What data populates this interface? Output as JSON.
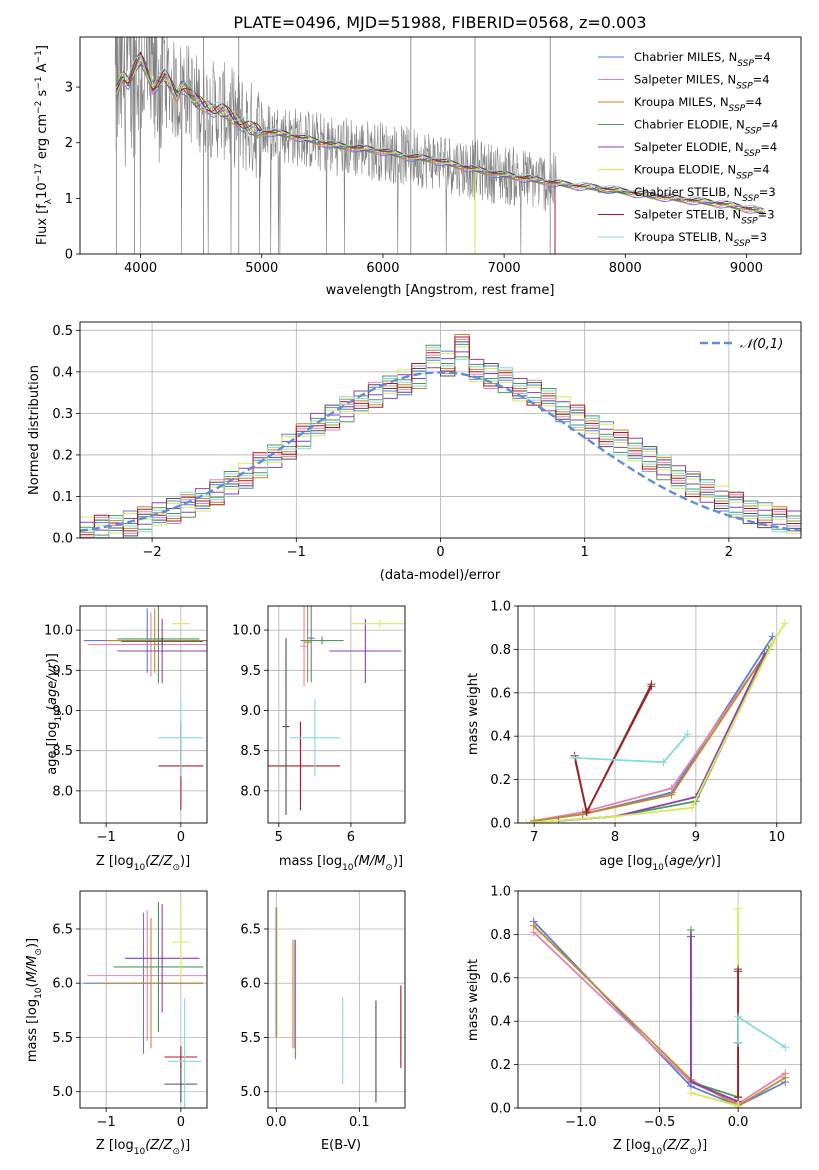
{
  "colors": {
    "chabrier_miles": "#5a7fd4",
    "salpeter_miles": "#e583b4",
    "kroupa_miles": "#c28a2e",
    "chabrier_elodie": "#4f9a55",
    "salpeter_elodie": "#8c3fb5",
    "kroupa_elodie": "#d8e85a",
    "chabrier_stelib": "#505050",
    "salpeter_stelib": "#a51d21",
    "kroupa_stelib": "#88d8e0",
    "data": "#808080",
    "gaussian": "#5b8fd9"
  },
  "chart_data": [
    {
      "type": "line",
      "title": "PLATE=0496, MJD=51988, FIBERID=0568, z=0.003",
      "xlabel": "wavelength [Angstrom, rest frame]",
      "ylabel_parts": [
        "Flux [f",
        "λ",
        "10",
        "−17",
        " erg cm",
        "−2",
        " s",
        "−1",
        " A",
        "−1",
        "]"
      ],
      "xlim": [
        3500,
        9450
      ],
      "ylim": [
        0,
        3.9
      ],
      "xticks": [
        4000,
        5000,
        6000,
        7000,
        8000,
        9000
      ],
      "yticks": [
        0,
        1,
        2,
        3
      ],
      "grid": false,
      "legend_position": "top-right",
      "series": [
        {
          "key": "chabrier_miles",
          "name_main": "Chabrier MILES, N",
          "name_sub": "SSP",
          "name_tail": "=4"
        },
        {
          "key": "salpeter_miles",
          "name_main": "Salpeter MILES, N",
          "name_sub": "SSP",
          "name_tail": "=4"
        },
        {
          "key": "kroupa_miles",
          "name_main": "Kroupa MILES, N",
          "name_sub": "SSP",
          "name_tail": "=4"
        },
        {
          "key": "chabrier_elodie",
          "name_main": "Chabrier ELODIE, N",
          "name_sub": "SSP",
          "name_tail": "=4"
        },
        {
          "key": "salpeter_elodie",
          "name_main": "Salpeter ELODIE, N",
          "name_sub": "SSP",
          "name_tail": "=4"
        },
        {
          "key": "kroupa_elodie",
          "name_main": "Kroupa ELODIE, N",
          "name_sub": "SSP",
          "name_tail": "=4"
        },
        {
          "key": "chabrier_stelib",
          "name_main": "Chabrier STELIB, N",
          "name_sub": "SSP",
          "name_tail": "=3"
        },
        {
          "key": "salpeter_stelib",
          "name_main": "Salpeter STELIB, N",
          "name_sub": "SSP",
          "name_tail": "=3"
        },
        {
          "key": "kroupa_stelib",
          "name_main": "Kroupa STELIB, N",
          "name_sub": "SSP",
          "name_tail": "=3"
        }
      ],
      "model_continuum": [
        [
          3800,
          2.9
        ],
        [
          3850,
          3.2
        ],
        [
          3900,
          3.1
        ],
        [
          3950,
          3.35
        ],
        [
          4000,
          3.5
        ],
        [
          4050,
          3.3
        ],
        [
          4100,
          3.0
        ],
        [
          4150,
          3.1
        ],
        [
          4200,
          3.2
        ],
        [
          4300,
          2.85
        ],
        [
          4350,
          3.05
        ],
        [
          4450,
          2.75
        ],
        [
          4500,
          2.7
        ],
        [
          4600,
          2.6
        ],
        [
          4700,
          2.55
        ],
        [
          4800,
          2.4
        ],
        [
          4900,
          2.25
        ],
        [
          5000,
          2.2
        ],
        [
          5200,
          2.15
        ],
        [
          5400,
          2.05
        ],
        [
          5600,
          1.95
        ],
        [
          5800,
          1.9
        ],
        [
          6000,
          1.85
        ],
        [
          6200,
          1.75
        ],
        [
          6400,
          1.7
        ],
        [
          6600,
          1.6
        ],
        [
          6800,
          1.5
        ],
        [
          7000,
          1.42
        ],
        [
          7200,
          1.35
        ],
        [
          7400,
          1.28
        ],
        [
          7600,
          1.22
        ],
        [
          7800,
          1.18
        ],
        [
          8000,
          1.12
        ],
        [
          8200,
          1.05
        ],
        [
          8400,
          1.0
        ],
        [
          8600,
          0.95
        ],
        [
          8800,
          0.9
        ],
        [
          9000,
          0.82
        ],
        [
          9150,
          0.75
        ]
      ],
      "data_extent": [
        3790,
        9150
      ],
      "noisy_until": 7430
    },
    {
      "type": "step",
      "xlabel": "(data-model)/error",
      "ylabel": "Normed distribution",
      "xlim": [
        -2.5,
        2.5
      ],
      "ylim": [
        0,
        0.52
      ],
      "xticks": [
        -2,
        -1,
        0,
        1,
        2
      ],
      "xtick_labels": [
        "−2",
        "−1",
        "0",
        "1",
        "2"
      ],
      "yticks": [
        0.0,
        0.1,
        0.2,
        0.3,
        0.4,
        0.5
      ],
      "ytick_labels": [
        "0.0",
        "0.1",
        "0.2",
        "0.3",
        "0.4",
        "0.5"
      ],
      "grid": true,
      "legend": "𝒩(0,1)",
      "legend_position": "top-right",
      "bin_width": 0.1,
      "base_profile": [
        0.02,
        0.025,
        0.03,
        0.035,
        0.045,
        0.055,
        0.065,
        0.08,
        0.095,
        0.11,
        0.13,
        0.15,
        0.175,
        0.2,
        0.22,
        0.245,
        0.27,
        0.29,
        0.31,
        0.33,
        0.345,
        0.36,
        0.375,
        0.39,
        0.44,
        0.42,
        0.46,
        0.4,
        0.39,
        0.38,
        0.36,
        0.35,
        0.33,
        0.31,
        0.29,
        0.27,
        0.25,
        0.23,
        0.21,
        0.19,
        0.17,
        0.15,
        0.13,
        0.11,
        0.095,
        0.08,
        0.065,
        0.055,
        0.045,
        0.035
      ]
    },
    {
      "type": "errorbar",
      "xlabel": "Z [log10(Z/Z⊙)]",
      "xlabel_main": "Z [log",
      "xlabel_sub": "10",
      "xlabel_tail": "(Z/Z",
      "xlabel_end": ")]",
      "ylabel": "age [log10(age/yr)]",
      "xlim": [
        -1.35,
        0.35
      ],
      "ylim": [
        7.6,
        10.3
      ],
      "xticks": [
        -1,
        0
      ],
      "xtick_labels": [
        "−1",
        "0"
      ],
      "yticks": [
        8.0,
        8.5,
        9.0,
        9.5,
        10.0
      ],
      "ytick_labels": [
        "8.0",
        "8.5",
        "9.0",
        "9.5",
        "10.0"
      ],
      "grid": true,
      "points": [
        {
          "key": "chabrier_miles",
          "x": -0.45,
          "xerr": 0.85,
          "y": 9.87,
          "yerr": 0.4
        },
        {
          "key": "salpeter_miles",
          "x": -0.4,
          "xerr": 0.85,
          "y": 9.82,
          "yerr": 0.4
        },
        {
          "key": "kroupa_miles",
          "x": -0.35,
          "xerr": 0.65,
          "y": 9.87,
          "yerr": 0.4
        },
        {
          "key": "chabrier_elodie",
          "x": -0.3,
          "xerr": 0.55,
          "y": 9.89,
          "yerr": 0.55
        },
        {
          "key": "salpeter_elodie",
          "x": -0.25,
          "xerr": 0.6,
          "y": 9.74,
          "yerr": 0.4
        },
        {
          "key": "kroupa_elodie",
          "x": 0.0,
          "xerr": 0.12,
          "y": 10.08,
          "yerr": 0.05
        },
        {
          "key": "chabrier_stelib",
          "x": -0.25,
          "xerr": 0.55,
          "y": 9.86,
          "yerr": 0.05
        },
        {
          "key": "salpeter_stelib",
          "x": 0.0,
          "xerr": 0.3,
          "y": 8.31,
          "yerr": 0.55
        },
        {
          "key": "kroupa_stelib",
          "x": 0.0,
          "xerr": 0.3,
          "y": 8.66,
          "yerr": 0.48
        }
      ]
    },
    {
      "type": "errorbar",
      "xlabel": "mass [log10(M/M⊙)]",
      "xlabel_main": "mass [log",
      "xlabel_sub": "10",
      "xlabel_tail": "(M/M",
      "xlabel_end": ")]",
      "xlim": [
        4.85,
        6.75
      ],
      "ylim": [
        7.6,
        10.3
      ],
      "xticks": [
        5,
        6
      ],
      "xtick_labels": [
        "5",
        "6"
      ],
      "yticks": [
        8.0,
        8.5,
        9.0,
        9.5,
        10.0
      ],
      "ytick_labels": [
        "8.0",
        "8.5",
        "9.0",
        "9.5",
        "10.0"
      ],
      "grid": true,
      "points": [
        {
          "key": "chabrier_miles",
          "x": 5.45,
          "xerr": 0.05,
          "y": 9.9,
          "yerr": 0.55
        },
        {
          "key": "salpeter_miles",
          "x": 5.35,
          "xerr": 0.05,
          "y": 9.8,
          "yerr": 0.5
        },
        {
          "key": "kroupa_miles",
          "x": 5.4,
          "xerr": 0.05,
          "y": 9.85,
          "yerr": 0.5
        },
        {
          "key": "chabrier_elodie",
          "x": 5.6,
          "xerr": 0.3,
          "y": 9.87,
          "yerr": 0.05
        },
        {
          "key": "salpeter_elodie",
          "x": 6.2,
          "xerr": 0.5,
          "y": 9.74,
          "yerr": 0.4
        },
        {
          "key": "kroupa_elodie",
          "x": 6.4,
          "xerr": 0.4,
          "y": 10.08,
          "yerr": 0.05
        },
        {
          "key": "chabrier_stelib",
          "x": 5.1,
          "xerr": 0.05,
          "y": 8.8,
          "yerr": 1.1
        },
        {
          "key": "salpeter_stelib",
          "x": 5.3,
          "xerr": 0.55,
          "y": 8.31,
          "yerr": 0.55
        },
        {
          "key": "kroupa_stelib",
          "x": 5.5,
          "xerr": 0.35,
          "y": 8.66,
          "yerr": 0.48
        }
      ]
    },
    {
      "type": "line",
      "xlabel": "age [log10(age/yr)]",
      "xlabel_main": "age  [log",
      "xlabel_sub": "10",
      "xlabel_tail": "(",
      "xlabel_italic": "age/yr",
      "xlabel_end": ")]",
      "ylabel": "mass weight",
      "xlim": [
        6.8,
        10.3
      ],
      "ylim": [
        0,
        1.0
      ],
      "xticks": [
        7,
        8,
        9,
        10
      ],
      "yticks": [
        0.0,
        0.2,
        0.4,
        0.6,
        0.8,
        1.0
      ],
      "ytick_labels": [
        "0.0",
        "0.2",
        "0.4",
        "0.6",
        "0.8",
        "1.0"
      ],
      "grid": true,
      "lines": [
        {
          "key": "chabrier_miles",
          "x": [
            7.0,
            7.6,
            8.7,
            9.95
          ],
          "y": [
            0.01,
            0.04,
            0.14,
            0.86
          ]
        },
        {
          "key": "salpeter_miles",
          "x": [
            7.0,
            7.6,
            8.7,
            9.9
          ],
          "y": [
            0.01,
            0.05,
            0.16,
            0.8
          ]
        },
        {
          "key": "kroupa_miles",
          "x": [
            7.0,
            7.6,
            8.7,
            9.95
          ],
          "y": [
            0.01,
            0.04,
            0.13,
            0.83
          ]
        },
        {
          "key": "chabrier_elodie",
          "x": [
            7.3,
            8.0,
            9.0,
            9.9
          ],
          "y": [
            0.01,
            0.03,
            0.1,
            0.8
          ]
        },
        {
          "key": "salpeter_elodie",
          "x": [
            7.3,
            8.0,
            9.0,
            9.85
          ],
          "y": [
            0.01,
            0.03,
            0.12,
            0.78
          ]
        },
        {
          "key": "kroupa_elodie",
          "x": [
            6.9,
            8.0,
            8.95,
            9.95,
            10.1
          ],
          "y": [
            0.0,
            0.03,
            0.07,
            0.83,
            0.92
          ]
        },
        {
          "key": "chabrier_stelib",
          "x": [
            7.5,
            7.65,
            8.45
          ],
          "y": [
            0.3,
            0.05,
            0.64
          ]
        },
        {
          "key": "salpeter_stelib",
          "x": [
            7.5,
            7.65,
            8.45
          ],
          "y": [
            0.31,
            0.05,
            0.63
          ]
        },
        {
          "key": "kroupa_stelib",
          "x": [
            7.5,
            8.6,
            8.9
          ],
          "y": [
            0.3,
            0.28,
            0.41
          ]
        }
      ]
    },
    {
      "type": "errorbar",
      "xlabel": "Z [log10(Z/Z⊙)]",
      "xlabel_main": "Z [log",
      "xlabel_sub": "10",
      "xlabel_tail": "(Z/Z",
      "xlabel_end": ")]",
      "ylabel": "mass [log10(M/M⊙)]",
      "xlim": [
        -1.35,
        0.35
      ],
      "ylim": [
        4.85,
        6.85
      ],
      "xticks": [
        -1,
        0
      ],
      "xtick_labels": [
        "−1",
        "0"
      ],
      "yticks": [
        5.0,
        5.5,
        6.0,
        6.5
      ],
      "ytick_labels": [
        "5.0",
        "5.5",
        "6.0",
        "6.5"
      ],
      "grid": true,
      "points": [
        {
          "key": "chabrier_miles",
          "x": -0.5,
          "xerr": 0.8,
          "y": 6.0,
          "yerr": 0.65
        },
        {
          "key": "salpeter_miles",
          "x": -0.45,
          "xerr": 0.8,
          "y": 6.07,
          "yerr": 0.6
        },
        {
          "key": "kroupa_miles",
          "x": -0.4,
          "xerr": 0.7,
          "y": 6.0,
          "yerr": 0.6
        },
        {
          "key": "chabrier_elodie",
          "x": -0.3,
          "xerr": 0.6,
          "y": 6.15,
          "yerr": 0.6
        },
        {
          "key": "salpeter_elodie",
          "x": -0.25,
          "xerr": 0.5,
          "y": 6.23,
          "yerr": 0.5
        },
        {
          "key": "kroupa_elodie",
          "x": 0.0,
          "xerr": 0.12,
          "y": 6.38,
          "yerr": 0.35
        },
        {
          "key": "chabrier_stelib",
          "x": 0.0,
          "xerr": 0.22,
          "y": 5.07,
          "yerr": 0.17
        },
        {
          "key": "salpeter_stelib",
          "x": 0.0,
          "xerr": 0.22,
          "y": 5.32,
          "yerr": 0.1
        },
        {
          "key": "kroupa_stelib",
          "x": 0.05,
          "xerr": 0.22,
          "y": 5.28,
          "yerr": 0.58
        }
      ]
    },
    {
      "type": "errorbar",
      "xlabel": "E(B-V)",
      "xlim": [
        -0.01,
        0.155
      ],
      "ylim": [
        4.85,
        6.85
      ],
      "xticks": [
        0.0,
        0.1
      ],
      "xtick_labels": [
        "0.0",
        "0.1"
      ],
      "yticks": [
        5.0,
        5.5,
        6.0,
        6.5
      ],
      "ytick_labels": [
        "5.0",
        "5.5",
        "6.0",
        "6.5"
      ],
      "grid": true,
      "points": [
        {
          "key": "chabrier_miles",
          "x": 0.023,
          "xerr": 0,
          "y": 5.85,
          "yerr": 0.55
        },
        {
          "key": "salpeter_miles",
          "x": 0.022,
          "xerr": 0,
          "y": 5.9,
          "yerr": 0.5
        },
        {
          "key": "kroupa_miles",
          "x": 0.02,
          "xerr": 0,
          "y": 5.9,
          "yerr": 0.5
        },
        {
          "key": "chabrier_elodie",
          "x": 0.0,
          "xerr": 0,
          "y": 6.1,
          "yerr": 0.6
        },
        {
          "key": "salpeter_elodie",
          "x": 0.0,
          "xerr": 0,
          "y": 6.1,
          "yerr": 0.6
        },
        {
          "key": "kroupa_elodie",
          "x": 0.001,
          "xerr": 0,
          "y": 6.1,
          "yerr": 0.6
        },
        {
          "key": "chabrier_stelib",
          "x": 0.12,
          "xerr": 0,
          "y": 5.37,
          "yerr": 0.47
        },
        {
          "key": "salpeter_stelib",
          "x": 0.15,
          "xerr": 0,
          "y": 5.6,
          "yerr": 0.38
        },
        {
          "key": "kroupa_stelib",
          "x": 0.08,
          "xerr": 0,
          "y": 5.47,
          "yerr": 0.4
        }
      ]
    },
    {
      "type": "line",
      "xlabel": "Z [log10(Z/Z⊙)]",
      "xlabel_main": "Z [log",
      "xlabel_sub": "10",
      "xlabel_tail": "(Z/Z",
      "xlabel_end": ")]",
      "ylabel": "mass weight",
      "xlim": [
        -1.4,
        0.4
      ],
      "ylim": [
        0,
        1.0
      ],
      "xticks": [
        -1.0,
        -0.5,
        0.0
      ],
      "xtick_labels": [
        "−1.0",
        "−0.5",
        "0.0"
      ],
      "yticks": [
        0.0,
        0.2,
        0.4,
        0.6,
        0.8,
        1.0
      ],
      "ytick_labels": [
        "0.0",
        "0.2",
        "0.4",
        "0.6",
        "0.8",
        "1.0"
      ],
      "grid": true,
      "lines": [
        {
          "key": "chabrier_miles",
          "x": [
            -1.3,
            -0.3,
            0.0,
            0.3
          ],
          "y": [
            0.86,
            0.1,
            0.01,
            0.12
          ]
        },
        {
          "key": "salpeter_miles",
          "x": [
            -1.3,
            -0.3,
            0.0,
            0.3
          ],
          "y": [
            0.81,
            0.12,
            0.02,
            0.16
          ]
        },
        {
          "key": "kroupa_miles",
          "x": [
            -1.3,
            -0.3,
            0.0,
            0.3
          ],
          "y": [
            0.84,
            0.13,
            0.01,
            0.14
          ]
        },
        {
          "key": "chabrier_elodie",
          "x": [
            -0.3,
            -0.3,
            0.0,
            0.0
          ],
          "y": [
            0.82,
            0.12,
            0.05,
            0.0
          ]
        },
        {
          "key": "salpeter_elodie",
          "x": [
            -0.3,
            -0.3,
            0.0,
            0.0
          ],
          "y": [
            0.79,
            0.12,
            0.03,
            0.0
          ]
        },
        {
          "key": "kroupa_elodie",
          "x": [
            -0.3,
            0.0,
            0.0
          ],
          "y": [
            0.07,
            0.01,
            0.92
          ]
        },
        {
          "key": "chabrier_stelib",
          "x": [
            0.0,
            0.0,
            0.0
          ],
          "y": [
            0.64,
            0.3,
            0.05
          ]
        },
        {
          "key": "salpeter_stelib",
          "x": [
            0.0,
            0.0,
            0.0
          ],
          "y": [
            0.63,
            0.05,
            0.3
          ]
        },
        {
          "key": "kroupa_stelib",
          "x": [
            0.0,
            0.0,
            0.3
          ],
          "y": [
            0.3,
            0.42,
            0.28
          ]
        }
      ]
    }
  ]
}
